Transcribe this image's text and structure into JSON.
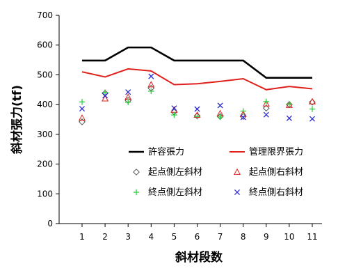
{
  "chart_data": {
    "type": "line",
    "xlabel": "斜材段数",
    "ylabel": "斜材張力(tf)",
    "ylim": [
      0,
      700
    ],
    "yticks": [
      0,
      100,
      200,
      300,
      400,
      500,
      600,
      700
    ],
    "categories": [
      "1",
      "2",
      "3",
      "4",
      "5",
      "6",
      "7",
      "8",
      "9",
      "10",
      "11"
    ],
    "grid": false,
    "legend_position": "bottom-inside",
    "series": [
      {
        "name": "許容張力",
        "kind": "line",
        "color": "#000000",
        "values": [
          548,
          548,
          592,
          592,
          548,
          548,
          548,
          548,
          490,
          490,
          490
        ]
      },
      {
        "name": "管理限界張力",
        "kind": "line",
        "color": "#e0201b",
        "values": [
          510,
          493,
          520,
          513,
          467,
          470,
          478,
          487,
          450,
          461,
          453
        ]
      },
      {
        "name": "起点側左斜材",
        "kind": "marker",
        "marker": "diamond",
        "color": "#555555",
        "values": [
          342,
          438,
          414,
          455,
          375,
          362,
          360,
          360,
          388,
          400,
          408
        ]
      },
      {
        "name": "起点側右斜材",
        "kind": "marker",
        "marker": "triangle",
        "color": "#e0201b",
        "values": [
          355,
          420,
          425,
          467,
          382,
          365,
          370,
          368,
          403,
          398,
          410
        ]
      },
      {
        "name": "終点側左斜材",
        "kind": "marker",
        "marker": "plus",
        "color": "#2ecc40",
        "values": [
          409,
          441,
          408,
          445,
          365,
          360,
          358,
          378,
          410,
          402,
          385
        ]
      },
      {
        "name": "終点側右斜材",
        "kind": "marker",
        "marker": "x",
        "color": "#2b2bd6",
        "values": [
          386,
          430,
          442,
          495,
          388,
          385,
          397,
          357,
          366,
          354,
          352
        ]
      }
    ]
  }
}
